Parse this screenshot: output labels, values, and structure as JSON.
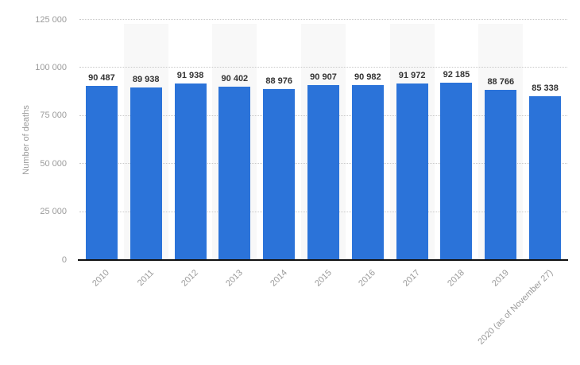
{
  "chart_data": {
    "type": "bar",
    "title": "",
    "xlabel": "",
    "ylabel": "Number of deaths",
    "categories": [
      "2010",
      "2011",
      "2012",
      "2013",
      "2014",
      "2015",
      "2016",
      "2017",
      "2018",
      "2019",
      "2020 (as of November 27)"
    ],
    "values": [
      90487,
      89938,
      91938,
      90402,
      88976,
      90907,
      90982,
      91972,
      92185,
      88766,
      85338
    ],
    "value_labels": [
      "90 487",
      "89 938",
      "91 938",
      "90 402",
      "88 976",
      "90 907",
      "90 982",
      "91 972",
      "92 185",
      "88 766",
      "85 338"
    ],
    "ylim": [
      0,
      125000
    ],
    "ytick_values": [
      0,
      25000,
      50000,
      75000,
      100000,
      125000
    ],
    "ytick_labels": [
      "0",
      "25 000",
      "50 000",
      "75 000",
      "100 000",
      "125 000"
    ],
    "grid": "horizontal-dotted",
    "legend": "none",
    "colors": {
      "bar": "#2b73d9",
      "stripe": "#f8f8f8",
      "gridline": "#c9c9c9",
      "axis_line": "#111111",
      "tick_label": "#9b9b9b",
      "value_label": "#333333",
      "background": "#ffffff"
    }
  }
}
